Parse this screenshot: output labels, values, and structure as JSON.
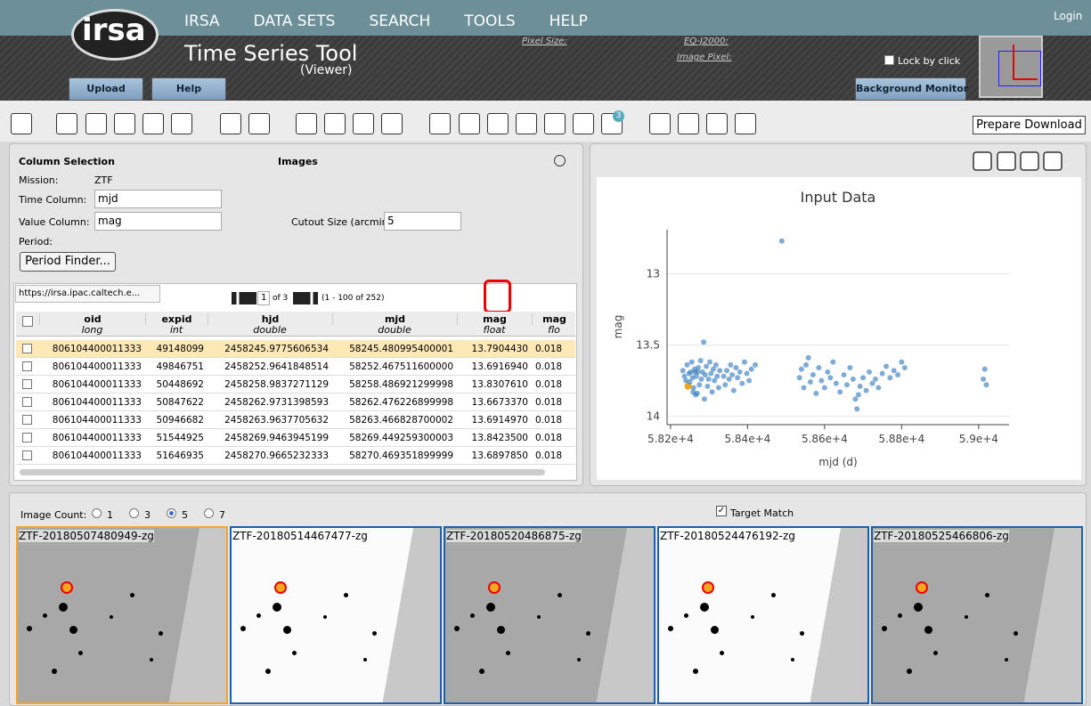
{
  "header": {
    "logo": "irsa",
    "nav": [
      "IRSA",
      "DATA SETS",
      "SEARCH",
      "TOOLS",
      "HELP"
    ],
    "login": "Login",
    "app_title": "Time Series Tool",
    "app_subtitle": "(Viewer)",
    "info_labels": [
      "Pixel Size:",
      "EQ-J2000:",
      "Image Pixel:"
    ],
    "buttons": [
      "Upload",
      "Help"
    ],
    "lock": "Lock by click",
    "background_monitor": "Background Monitor"
  },
  "toolbar": {
    "layers_badge": "3",
    "prepare_download": "Prepare Download"
  },
  "column_selection": {
    "title": "Column Selection",
    "images_title": "Images",
    "mission_label": "Mission:",
    "mission": "ZTF",
    "time_label": "Time Column:",
    "time_value": "mjd",
    "value_label": "Value Column:",
    "value_value": "mag",
    "period_label": "Period:",
    "period_button": "Period Finder...",
    "cutout_label": "Cutout Size (arcmin):",
    "cutout_value": "5"
  },
  "table": {
    "tab": "https://irsa.ipac.caltech.e...",
    "page": "1",
    "page_of": "of 3",
    "range": "(1 - 100 of 252)",
    "columns": [
      {
        "name": "oid",
        "type": "long"
      },
      {
        "name": "expid",
        "type": "int"
      },
      {
        "name": "hjd",
        "type": "double"
      },
      {
        "name": "mjd",
        "type": "double"
      },
      {
        "name": "mag",
        "type": "float"
      },
      {
        "name": "mag",
        "type": "flo"
      }
    ],
    "rows": [
      [
        "806104400011333",
        "49148099",
        "2458245.9775606534",
        "58245.480995400001",
        "13.7904430",
        "0.018"
      ],
      [
        "806104400011333",
        "49846751",
        "2458252.9641848514",
        "58252.467511600000",
        "13.6916940",
        "0.018"
      ],
      [
        "806104400011333",
        "50448692",
        "2458258.9837271129",
        "58258.486921299998",
        "13.8307610",
        "0.018"
      ],
      [
        "806104400011333",
        "50847622",
        "2458262.9731398593",
        "58262.476226899998",
        "13.6673370",
        "0.018"
      ],
      [
        "806104400011333",
        "50946682",
        "2458263.9637705632",
        "58263.466828700002",
        "13.6914970",
        "0.018"
      ],
      [
        "806104400011333",
        "51544925",
        "2458269.9463945199",
        "58269.449259300003",
        "13.8423500",
        "0.018"
      ],
      [
        "806104400011333",
        "51646935",
        "2458270.9665232333",
        "58270.469351899999",
        "13.6897850",
        "0.018"
      ]
    ]
  },
  "chart_data": {
    "type": "scatter",
    "title": "Input Data",
    "xlabel": "mjd (d)",
    "ylabel": "mag",
    "color": "#3b7fc0",
    "highlight_color": "#f5a623",
    "highlight": 0,
    "xlim": [
      58191,
      59079
    ],
    "ylim": [
      14.06,
      12.69
    ],
    "xticks": [
      {
        "value": 58200,
        "label": "5.82e+4"
      },
      {
        "value": 58400,
        "label": "5.84e+4"
      },
      {
        "value": 58600,
        "label": "5.86e+4"
      },
      {
        "value": 58800,
        "label": "5.88e+4"
      },
      {
        "value": 59000,
        "label": "5.9e+4"
      }
    ],
    "yticks": [
      13,
      13.5,
      14
    ],
    "grid": true,
    "x": [
      58245.48,
      58252.47,
      58258.49,
      58262.48,
      58263.47,
      58269.45,
      58270.47,
      58232,
      58236,
      58240,
      58243,
      58248,
      58250,
      58255,
      58257,
      58260,
      58265,
      58267,
      58272,
      58275,
      58278,
      58280,
      58283,
      58286,
      58288,
      58290,
      58293,
      58296,
      58299,
      58302,
      58305,
      58308,
      58311,
      58314,
      58318,
      58321,
      58325,
      58328,
      58338,
      58342,
      58346,
      58352,
      58356,
      58360,
      58364,
      58370,
      58374,
      58380,
      58386,
      58392,
      58398,
      58404,
      58410,
      58420,
      58489,
      58535,
      58540,
      58546,
      58552,
      58558,
      58563,
      58570,
      58578,
      58585,
      58592,
      58600,
      58608,
      58615,
      58622,
      58630,
      58640,
      58650,
      58658,
      58666,
      58674,
      58680,
      58684,
      58688,
      58692,
      58700,
      58708,
      58716,
      58724,
      58732,
      58740,
      58750,
      58760,
      58770,
      58780,
      58790,
      58800,
      58808,
      59012,
      59016,
      59020
    ],
    "values": [
      13.79,
      13.69,
      13.83,
      13.67,
      13.69,
      13.84,
      13.69,
      13.68,
      13.72,
      13.75,
      13.64,
      13.7,
      13.76,
      13.62,
      13.73,
      13.8,
      13.85,
      13.72,
      13.66,
      13.78,
      13.61,
      13.74,
      13.69,
      13.48,
      13.88,
      13.71,
      13.65,
      13.79,
      13.74,
      13.62,
      13.7,
      13.83,
      13.67,
      13.75,
      13.64,
      13.72,
      13.8,
      13.68,
      13.72,
      13.78,
      13.68,
      13.74,
      13.64,
      13.71,
      13.82,
      13.66,
      13.73,
      13.69,
      13.77,
      13.62,
      13.7,
      13.75,
      13.67,
      13.64,
      12.77,
      13.73,
      13.67,
      13.8,
      13.64,
      13.59,
      13.76,
      13.71,
      13.84,
      13.66,
      13.75,
      13.8,
      13.69,
      13.73,
      13.62,
      13.77,
      13.83,
      13.71,
      13.78,
      13.66,
      13.74,
      13.88,
      13.95,
      13.85,
      13.79,
      13.73,
      13.82,
      13.69,
      13.77,
      13.74,
      13.8,
      13.7,
      13.65,
      13.73,
      13.68,
      13.71,
      13.62,
      13.66,
      13.74,
      13.67,
      13.78
    ]
  },
  "images": {
    "count_label": "Image Count:",
    "count_options": [
      "1",
      "3",
      "5",
      "7"
    ],
    "selected": 2,
    "target_match": "Target Match",
    "tiles": [
      "ZTF-20180507480949-zg",
      "ZTF-20180514467477-zg",
      "ZTF-20180520486875-zg",
      "ZTF-20180524476192-zg",
      "ZTF-20180525466806-zg"
    ]
  }
}
